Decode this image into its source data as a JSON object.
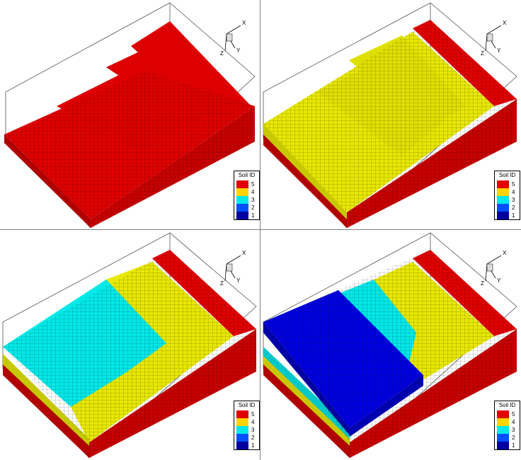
{
  "colors": {
    "soil5": "#e00000",
    "soil4": "#e8e800",
    "soil3": "#00e8e8",
    "soil2": "#0000e0",
    "soil1": "#0000c8",
    "gridline": "#111111",
    "bbox": "#555555"
  },
  "axes": {
    "x": "X",
    "y": "Y",
    "z": "Z"
  },
  "legend": {
    "title": "Soil ID",
    "entries": [
      {
        "label": "5",
        "color": "#e00000"
      },
      {
        "label": "4",
        "color": "#ffd400"
      },
      {
        "label": "3",
        "color": "#00e8e8"
      },
      {
        "label": "2",
        "color": "#0050ff"
      },
      {
        "label": "1",
        "color": "#0000a0"
      }
    ]
  },
  "panels": [
    {
      "id": "stage-1",
      "top_material": "soil5"
    },
    {
      "id": "stage-2",
      "top_material": "soil4"
    },
    {
      "id": "stage-3",
      "top_material": "soil3"
    },
    {
      "id": "stage-4",
      "top_material": "soil2"
    }
  ]
}
